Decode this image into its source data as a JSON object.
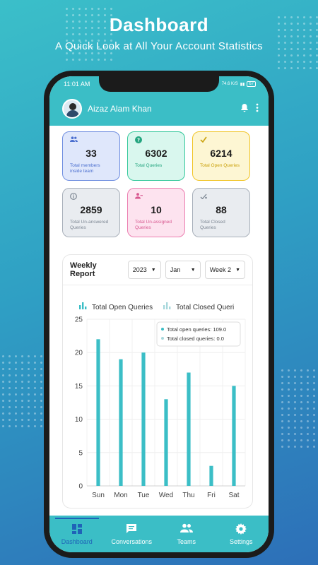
{
  "headline": {
    "title": "Dashboard",
    "subtitle": "A Quick Look at All Your Account Statistics"
  },
  "status_bar": {
    "time": "11:01 AM",
    "net": "74.6 K/S",
    "battery": "67"
  },
  "app_bar": {
    "user_name": "Aizaz Alam Khan",
    "notification_icon": "bell-icon",
    "menu_icon": "more-vert-icon"
  },
  "cards": [
    {
      "value": "33",
      "label": "Total members inside team",
      "icon": "people-icon",
      "color": "blue"
    },
    {
      "value": "6302",
      "label": "Total Queries",
      "icon": "question-icon",
      "color": "green"
    },
    {
      "value": "6214",
      "label": "Total Open Queries",
      "icon": "check-icon",
      "color": "yellow"
    },
    {
      "value": "2859",
      "label": "Total Un-answered Queries",
      "icon": "info-icon",
      "color": "gray"
    },
    {
      "value": "10",
      "label": "Total Un-assigned Queries",
      "icon": "unassign-icon",
      "color": "pink"
    },
    {
      "value": "88",
      "label": "Total Closed Queries",
      "icon": "closed-icon",
      "color": "gray"
    }
  ],
  "report": {
    "title": "Weekly Report",
    "year": "2023",
    "month": "Jan",
    "week": "Week 2"
  },
  "chart_data": {
    "type": "bar",
    "categories": [
      "Sun",
      "Mon",
      "Tue",
      "Wed",
      "Thu",
      "Fri",
      "Sat"
    ],
    "series": [
      {
        "name": "Total Open Queries",
        "values": [
          22,
          19,
          20,
          13,
          17,
          3,
          15
        ],
        "color": "#3bbec6"
      },
      {
        "name": "Total Closed Queri",
        "values": [
          0,
          0,
          0,
          0,
          0,
          0,
          0
        ],
        "color": "#a8d8dc"
      }
    ],
    "ylim": [
      0,
      25
    ],
    "yticks": [
      "0",
      "5",
      "10",
      "15",
      "20",
      "25"
    ],
    "grid": true,
    "legend": "top",
    "tooltip": {
      "line1": "Total open queries: 109.0",
      "line2": "Total closed queries: 0.0"
    }
  },
  "nav": [
    {
      "label": "Dashboard",
      "icon": "dashboard-icon",
      "active": true
    },
    {
      "label": "Conversations",
      "icon": "chat-icon",
      "active": false
    },
    {
      "label": "Teams",
      "icon": "group-icon",
      "active": false
    },
    {
      "label": "Settings",
      "icon": "gear-icon",
      "active": false
    }
  ]
}
